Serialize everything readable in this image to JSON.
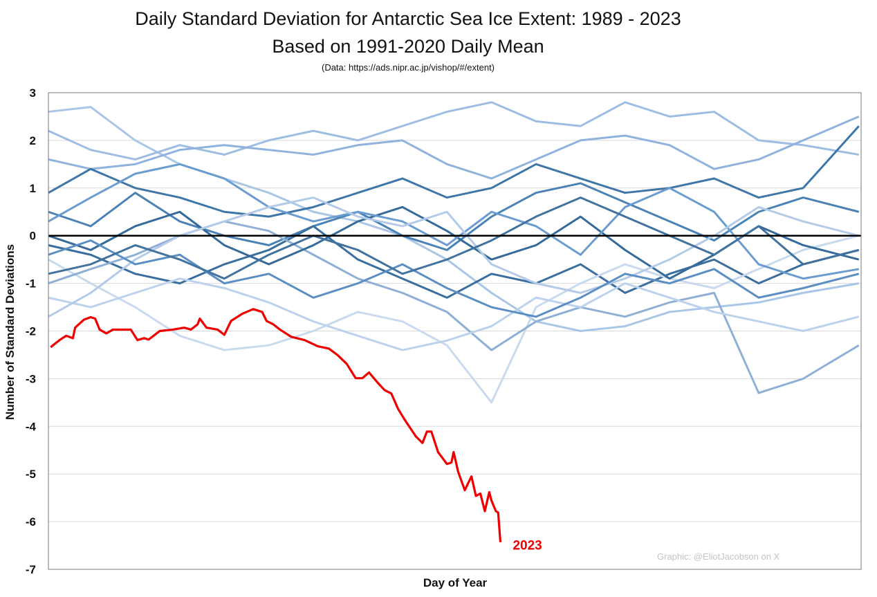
{
  "chart_data": {
    "type": "line",
    "title": "Daily Standard Deviation for Antarctic Sea Ice Extent: 1989 - 2023",
    "subtitle": "Based on 1991-2020 Daily Mean",
    "source_note": "(Data: https://ads.nipr.ac.jp/vishop/#/extent)",
    "xlabel": "Day of Year",
    "ylabel": "Number of Standard Deviations",
    "xlim": [
      1,
      366
    ],
    "ylim": [
      -7,
      3
    ],
    "yticks": [
      "3",
      "2",
      "1",
      "0",
      "-1",
      "-2",
      "-3",
      "-4",
      "-5",
      "-6",
      "-7"
    ],
    "grid": true,
    "legend": "none",
    "watermark": "Graphic: @EliotJacobson on X",
    "highlight": {
      "name": "2023",
      "color": "#ee0000",
      "days": [
        2,
        6,
        9,
        12,
        13,
        17,
        20,
        22,
        24,
        27,
        30,
        38,
        41,
        44,
        46,
        51,
        57,
        62,
        65,
        68,
        69,
        72,
        77,
        80,
        83,
        88,
        93,
        97,
        99,
        102,
        105,
        110,
        116,
        122,
        127,
        131,
        135,
        139,
        142,
        145,
        149,
        152,
        155,
        158,
        161,
        166,
        169,
        171,
        173,
        176,
        180,
        182,
        183,
        185,
        188,
        191,
        193,
        195,
        197,
        199,
        200,
        202,
        203,
        204
      ],
      "values": [
        -2.34,
        -2.19,
        -2.1,
        -2.15,
        -1.93,
        -1.76,
        -1.71,
        -1.74,
        -1.97,
        -2.05,
        -1.97,
        -1.97,
        -2.19,
        -2.15,
        -2.18,
        -2.0,
        -1.97,
        -1.93,
        -1.97,
        -1.86,
        -1.74,
        -1.93,
        -1.97,
        -2.08,
        -1.79,
        -1.64,
        -1.54,
        -1.6,
        -1.79,
        -1.86,
        -1.97,
        -2.12,
        -2.19,
        -2.32,
        -2.37,
        -2.51,
        -2.69,
        -2.99,
        -2.99,
        -2.87,
        -3.09,
        -3.24,
        -3.31,
        -3.63,
        -3.86,
        -4.21,
        -4.35,
        -4.11,
        -4.11,
        -4.54,
        -4.79,
        -4.76,
        -4.54,
        -4.95,
        -5.34,
        -5.05,
        -5.46,
        -5.41,
        -5.78,
        -5.38,
        -5.56,
        -5.78,
        -5.81,
        -6.43
      ]
    },
    "reference_line": {
      "value": 0,
      "color": "#000000"
    },
    "background_days": [
      1,
      20,
      40,
      60,
      80,
      100,
      120,
      140,
      160,
      180,
      200,
      220,
      240,
      260,
      280,
      300,
      320,
      340,
      365
    ],
    "background_series": [
      {
        "color": "#a9c6e6",
        "values": [
          2.6,
          2.7,
          2.0,
          1.5,
          1.2,
          0.9,
          0.5,
          0.3,
          0.0,
          -0.5,
          -1.2,
          -1.8,
          -2.0,
          -1.9,
          -1.6,
          -1.5,
          -1.4,
          -1.2,
          -1.0
        ]
      },
      {
        "color": "#9dbde3",
        "values": [
          2.2,
          1.8,
          1.6,
          1.9,
          1.7,
          2.0,
          2.2,
          2.0,
          2.3,
          2.6,
          2.8,
          2.4,
          2.3,
          2.8,
          2.5,
          2.6,
          2.0,
          1.9,
          1.7
        ]
      },
      {
        "color": "#8fb3dc",
        "values": [
          1.6,
          1.4,
          1.5,
          1.8,
          1.9,
          1.8,
          1.7,
          1.9,
          2.0,
          1.5,
          1.2,
          1.6,
          2.0,
          2.1,
          1.9,
          1.4,
          1.6,
          2.0,
          2.5
        ]
      },
      {
        "color": "#3f76a8",
        "values": [
          0.9,
          1.4,
          1.0,
          0.8,
          0.5,
          0.4,
          0.6,
          0.9,
          1.2,
          0.8,
          1.0,
          1.5,
          1.2,
          0.9,
          1.0,
          1.2,
          0.8,
          1.0,
          2.3
        ]
      },
      {
        "color": "#4a82b6",
        "values": [
          0.5,
          0.2,
          0.9,
          0.3,
          0.0,
          -0.2,
          0.2,
          0.5,
          0.0,
          -0.3,
          0.4,
          0.9,
          1.1,
          0.7,
          0.3,
          -0.1,
          0.5,
          0.8,
          0.5
        ]
      },
      {
        "color": "#3a6e9e",
        "values": [
          -0.2,
          -0.4,
          -0.8,
          -1.0,
          -0.6,
          -0.3,
          0.2,
          -0.5,
          -0.9,
          -1.3,
          -0.8,
          -1.0,
          -0.6,
          -1.2,
          -0.8,
          -0.5,
          -1.0,
          -0.6,
          -0.3
        ]
      },
      {
        "color": "#c9daef",
        "values": [
          -0.5,
          -1.0,
          -1.5,
          -2.1,
          -2.4,
          -2.3,
          -2.0,
          -1.6,
          -1.8,
          -2.3,
          -3.5,
          -1.5,
          -1.0,
          -0.6,
          -0.9,
          -1.1,
          -0.7,
          -0.3,
          0.0
        ]
      },
      {
        "color": "#8fb0d6",
        "values": [
          -1.0,
          -0.7,
          -0.4,
          0.0,
          0.3,
          0.1,
          -0.4,
          -0.9,
          -1.2,
          -1.6,
          -2.4,
          -1.8,
          -1.5,
          -1.7,
          -1.4,
          -1.2,
          -3.3,
          -3.0,
          -2.3
        ]
      },
      {
        "color": "#bcd2ec",
        "values": [
          -1.3,
          -1.5,
          -1.2,
          -0.9,
          -1.1,
          -1.4,
          -1.8,
          -2.1,
          -2.4,
          -2.2,
          -1.9,
          -1.3,
          -1.5,
          -1.0,
          -1.3,
          -1.6,
          -1.8,
          -2.0,
          -1.7
        ]
      },
      {
        "color": "#356a9a",
        "values": [
          0.0,
          -0.3,
          0.2,
          0.5,
          -0.2,
          -0.6,
          -0.2,
          0.3,
          0.6,
          0.1,
          -0.5,
          -0.2,
          0.4,
          -0.3,
          -0.9,
          -0.4,
          0.2,
          -0.2,
          -0.5
        ]
      },
      {
        "color": "#6a9ccf",
        "values": [
          0.3,
          0.8,
          1.3,
          1.5,
          1.2,
          0.6,
          0.3,
          0.5,
          0.3,
          -0.2,
          0.5,
          0.2,
          -0.4,
          0.6,
          1.0,
          0.5,
          -0.6,
          -0.9,
          -0.7
        ]
      },
      {
        "color": "#b3cbe8",
        "values": [
          -1.7,
          -1.2,
          -0.5,
          0.0,
          0.3,
          0.6,
          0.8,
          0.4,
          0.2,
          0.5,
          -0.6,
          -1.0,
          -1.2,
          -0.9,
          -0.5,
          0.0,
          0.6,
          0.3,
          0.0
        ]
      },
      {
        "color": "#5b8fc4",
        "values": [
          -0.4,
          -0.1,
          -0.6,
          -0.4,
          -1.0,
          -0.8,
          -1.3,
          -1.0,
          -0.6,
          -1.1,
          -1.5,
          -1.7,
          -1.3,
          -0.8,
          -1.0,
          -0.7,
          -1.3,
          -1.1,
          -0.8
        ]
      },
      {
        "color": "#42729f",
        "values": [
          -0.8,
          -0.6,
          -0.2,
          -0.5,
          -0.9,
          -0.4,
          0.0,
          -0.3,
          -0.8,
          -0.5,
          -0.1,
          0.4,
          0.8,
          0.4,
          0.0,
          -0.4,
          0.2,
          -0.6,
          -0.3
        ]
      }
    ]
  }
}
